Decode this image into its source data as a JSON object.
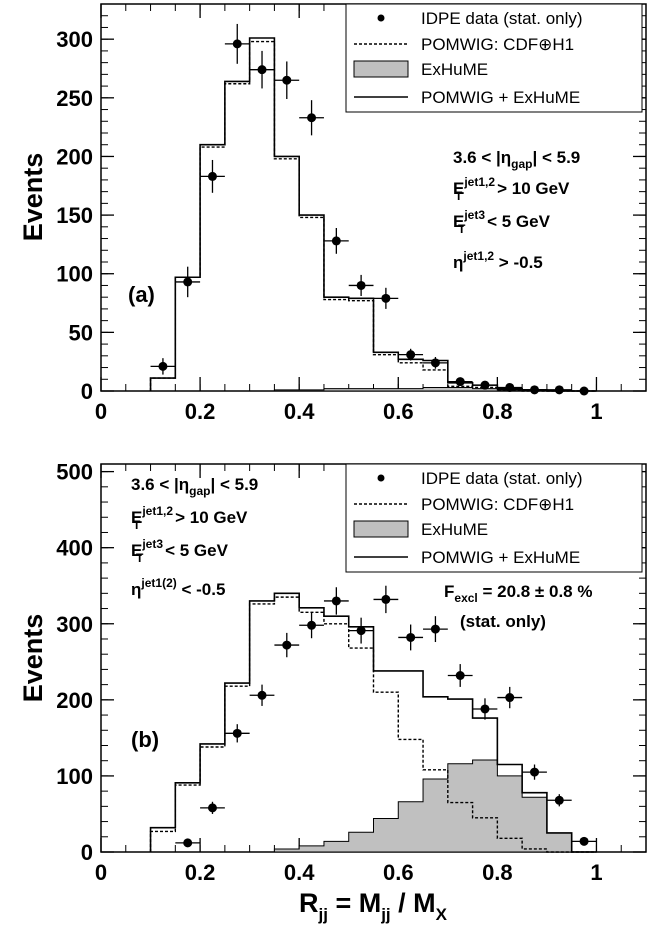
{
  "chart_data": [
    {
      "type": "histogram",
      "panel_label": "(a)",
      "ylabel": "Events",
      "xlabel": "",
      "xlim": [
        0,
        1.1
      ],
      "ylim": [
        0,
        330
      ],
      "y_ticks": [
        0,
        50,
        100,
        150,
        200,
        250,
        300
      ],
      "x_ticks": [
        0,
        0.2,
        0.4,
        0.6,
        0.8,
        1
      ],
      "bin_edges": [
        0.1,
        0.15,
        0.2,
        0.25,
        0.3,
        0.35,
        0.4,
        0.45,
        0.5,
        0.55,
        0.6,
        0.65,
        0.7,
        0.75,
        0.8,
        0.85,
        0.9,
        0.95,
        1.0
      ],
      "legend": {
        "position": "top-right",
        "entries": [
          "IDPE data (stat. only)",
          "POMWIG: CDF⊕H1",
          "ExHuME",
          "POMWIG + ExHuME"
        ]
      },
      "cuts_text": {
        "l1_main": "3.6 < |η",
        "l1_sub": "gap",
        "l1_end": "| < 5.9",
        "l2_main": "E",
        "l2_sub": "T",
        "l2_sup": "jet1,2",
        "l2_end": " > 10 GeV",
        "l3_main": "E",
        "l3_sub": "T",
        "l3_sup": "jet3",
        "l3_end": " < 5 GeV",
        "l4_main": "η",
        "l4_sup": "jet1,2",
        "l4_end": " > -0.5"
      },
      "series": [
        {
          "name": "IDPE data (stat. only)",
          "style": "points",
          "x": [
            0.125,
            0.175,
            0.225,
            0.275,
            0.325,
            0.375,
            0.425,
            0.475,
            0.525,
            0.575,
            0.625,
            0.675,
            0.725,
            0.775,
            0.825,
            0.875,
            0.925,
            0.975
          ],
          "values": [
            21,
            93,
            183,
            296,
            274,
            265,
            233,
            128,
            90,
            79,
            31,
            24,
            8,
            5,
            3,
            1,
            1,
            0
          ],
          "errors": [
            7,
            13,
            14,
            17,
            16,
            16,
            15,
            11,
            9,
            9,
            5,
            5,
            3,
            2,
            2,
            1,
            1,
            0
          ]
        },
        {
          "name": "POMWIG: CDF⊕H1",
          "style": "dashed-step",
          "values": [
            11,
            97,
            208,
            262,
            298,
            198,
            148,
            78,
            77,
            31,
            24,
            18,
            4,
            3,
            1,
            0,
            0,
            0
          ]
        },
        {
          "name": "ExHuME",
          "style": "filled-step",
          "color": "#c0c0c0",
          "values": [
            0,
            0,
            0,
            0,
            0,
            1,
            1,
            2,
            2,
            2,
            2,
            3,
            3,
            2,
            1,
            0.5,
            0,
            0
          ]
        },
        {
          "name": "POMWIG + ExHuME",
          "style": "solid-step",
          "values": [
            11,
            97,
            210,
            264,
            301,
            200,
            150,
            80,
            79,
            33,
            27,
            26,
            7,
            5,
            2,
            1,
            0,
            0
          ]
        }
      ]
    },
    {
      "type": "histogram",
      "panel_label": "(b)",
      "ylabel": "Events",
      "xlabel": "R",
      "xlim": [
        0,
        1.1
      ],
      "ylim": [
        0,
        510
      ],
      "y_ticks": [
        0,
        100,
        200,
        300,
        400,
        500
      ],
      "x_ticks": [
        0,
        0.2,
        0.4,
        0.6,
        0.8,
        1
      ],
      "bin_edges": [
        0.1,
        0.15,
        0.2,
        0.25,
        0.3,
        0.35,
        0.4,
        0.45,
        0.5,
        0.55,
        0.6,
        0.65,
        0.7,
        0.75,
        0.8,
        0.85,
        0.9,
        0.95,
        1.0
      ],
      "legend": {
        "position": "top-right",
        "entries": [
          "IDPE data (stat. only)",
          "POMWIG: CDF⊕H1",
          "ExHuME",
          "POMWIG + ExHuME"
        ]
      },
      "cuts_text": {
        "l1_main": "3.6 < |η",
        "l1_sub": "gap",
        "l1_end": "| < 5.9",
        "l2_main": "E",
        "l2_sub": "T",
        "l2_sup": "jet1,2",
        "l2_end": " > 10 GeV",
        "l3_main": "E",
        "l3_sub": "T",
        "l3_sup": "jet3",
        "l3_end": " < 5 GeV",
        "l4_main": "η",
        "l4_sup": "jet1(2)",
        "l4_end": " < -0.5"
      },
      "fexcl": {
        "main": "F",
        "sub": "excl",
        "end": " = 20.8 ± 0.8 %",
        "line2": "(stat. only)"
      },
      "series": [
        {
          "name": "IDPE data (stat. only)",
          "style": "points",
          "x": [
            0.175,
            0.225,
            0.275,
            0.325,
            0.375,
            0.425,
            0.475,
            0.525,
            0.575,
            0.625,
            0.675,
            0.725,
            0.775,
            0.825,
            0.875,
            0.925,
            0.975
          ],
          "values": [
            12,
            58,
            156,
            206,
            272,
            298,
            330,
            291,
            332,
            282,
            293,
            232,
            188,
            203,
            105,
            68,
            14
          ],
          "errors": [
            4,
            8,
            12,
            14,
            16,
            17,
            18,
            17,
            18,
            17,
            17,
            15,
            14,
            14,
            10,
            8,
            4
          ]
        },
        {
          "name": "POMWIG: CDF⊕H1",
          "style": "dashed-step",
          "values": [
            27,
            88,
            138,
            218,
            326,
            335,
            315,
            300,
            268,
            210,
            148,
            108,
            65,
            45,
            18,
            4,
            0,
            0
          ]
        },
        {
          "name": "ExHuME",
          "style": "filled-step",
          "color": "#c0c0c0",
          "values": [
            0,
            0,
            0,
            0,
            0,
            4,
            8,
            14,
            26,
            44,
            66,
            96,
            116,
            121,
            100,
            72,
            25,
            0
          ]
        },
        {
          "name": "POMWIG + ExHuME",
          "style": "solid-step",
          "values": [
            32,
            91,
            142,
            222,
            330,
            340,
            321,
            310,
            296,
            238,
            238,
            204,
            201,
            176,
            115,
            78,
            25,
            0
          ]
        }
      ]
    }
  ],
  "xtitle": {
    "r": "R",
    "r_sub": "jj",
    "mid": " = M",
    "m_sub": "jj",
    "end": " / M",
    "x_sub": "X"
  }
}
